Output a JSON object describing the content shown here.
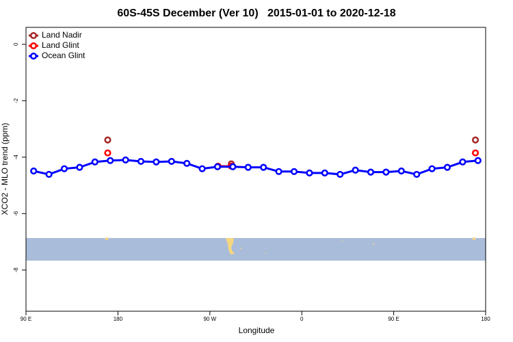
{
  "chart_data": {
    "type": "line",
    "title": "60S-45S December (Ver 10)   2015-01-01 to 2020-12-18",
    "x_label": "Longitude",
    "y_label": "XCO2 - MLO trend (ppm)",
    "xlim": [
      90,
      540
    ],
    "xticks": [
      {
        "value": 90,
        "label": "90 E"
      },
      180,
      {
        "value": 270,
        "label": "90 W"
      },
      {
        "value": 360,
        "label": "0"
      },
      {
        "value": 450,
        "label": "90 E"
      },
      {
        "value": 540,
        "label": "180"
      }
    ],
    "ylim": [
      -9.46,
      0.6
    ],
    "yticks": [
      0,
      -2,
      -4,
      -6,
      -8
    ],
    "legend": "top-left",
    "series": [
      {
        "name": "Land Nadir",
        "color": "#a52a2a",
        "x": [
          170,
          null,
          291,
          null,
          530
        ],
        "values": [
          -3.39,
          null,
          -4.24,
          null,
          -3.39
        ]
      },
      {
        "name": "Land Glint",
        "color": "#ff0000",
        "x": [
          170,
          null,
          278,
          291,
          null,
          530
        ],
        "values": [
          -3.85,
          null,
          -4.32,
          -4.32,
          null,
          -3.85
        ]
      },
      {
        "name": "Ocean Glint",
        "color": "#0000ff",
        "x": [
          97.5,
          112.5,
          127.5,
          142.5,
          157.5,
          172.5,
          187.5,
          202.5,
          217.5,
          232.5,
          247.5,
          262.5,
          277.5,
          292.5,
          307.5,
          322.5,
          337.5,
          352.5,
          367.5,
          382.5,
          397.5,
          412.5,
          427.5,
          442.5,
          457.5,
          472.5,
          487.5,
          502.5,
          517.5,
          532.5
        ],
        "values": [
          -4.49,
          -4.61,
          -4.41,
          -4.36,
          -4.17,
          -4.12,
          -4.1,
          -4.15,
          -4.17,
          -4.15,
          -4.22,
          -4.41,
          -4.34,
          -4.34,
          -4.36,
          -4.36,
          -4.51,
          -4.51,
          -4.56,
          -4.56,
          -4.61,
          -4.46,
          -4.53,
          -4.53,
          -4.49,
          -4.61,
          -4.41,
          -4.36,
          -4.17,
          -4.12
        ]
      }
    ]
  }
}
